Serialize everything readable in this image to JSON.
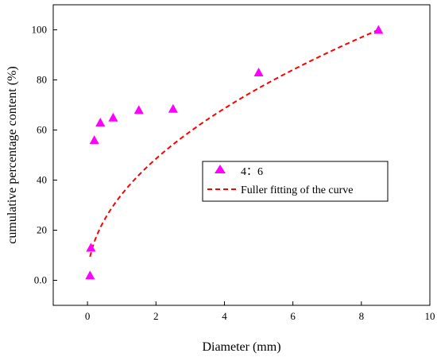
{
  "chart_data": {
    "type": "scatter",
    "xlabel": "Diameter (mm)",
    "ylabel": "cumulative percentage content (%)",
    "xlim": [
      -1,
      10
    ],
    "ylim": [
      -10,
      110
    ],
    "x_ticks": [
      0,
      2,
      4,
      6,
      8,
      10
    ],
    "y_ticks": [
      {
        "value": 0,
        "label": "0.0"
      },
      {
        "value": 20,
        "label": "20"
      },
      {
        "value": 40,
        "label": "40"
      },
      {
        "value": 60,
        "label": "60"
      },
      {
        "value": 80,
        "label": "80"
      },
      {
        "value": 100,
        "label": "100"
      }
    ],
    "grid": false,
    "legend_position": "center-right",
    "series": [
      {
        "name": "4：6",
        "kind": "scatter",
        "marker": "triangle",
        "color": "#ff00ff",
        "x": [
          0.075,
          0.1,
          0.1,
          0.2,
          0.375,
          0.75,
          1.5,
          2.5,
          5,
          8.5
        ],
        "y": [
          2,
          13,
          13,
          56,
          63,
          65,
          68,
          68.5,
          83,
          100
        ]
      },
      {
        "name": "Fuller fitting of the curve",
        "kind": "line",
        "style": "dashed",
        "color": "#ff0000",
        "curve": {
          "form": "fuller",
          "dmax": 8.5,
          "exponent": 0.5,
          "x_start": 0.075,
          "x_end": 8.5
        }
      }
    ]
  }
}
